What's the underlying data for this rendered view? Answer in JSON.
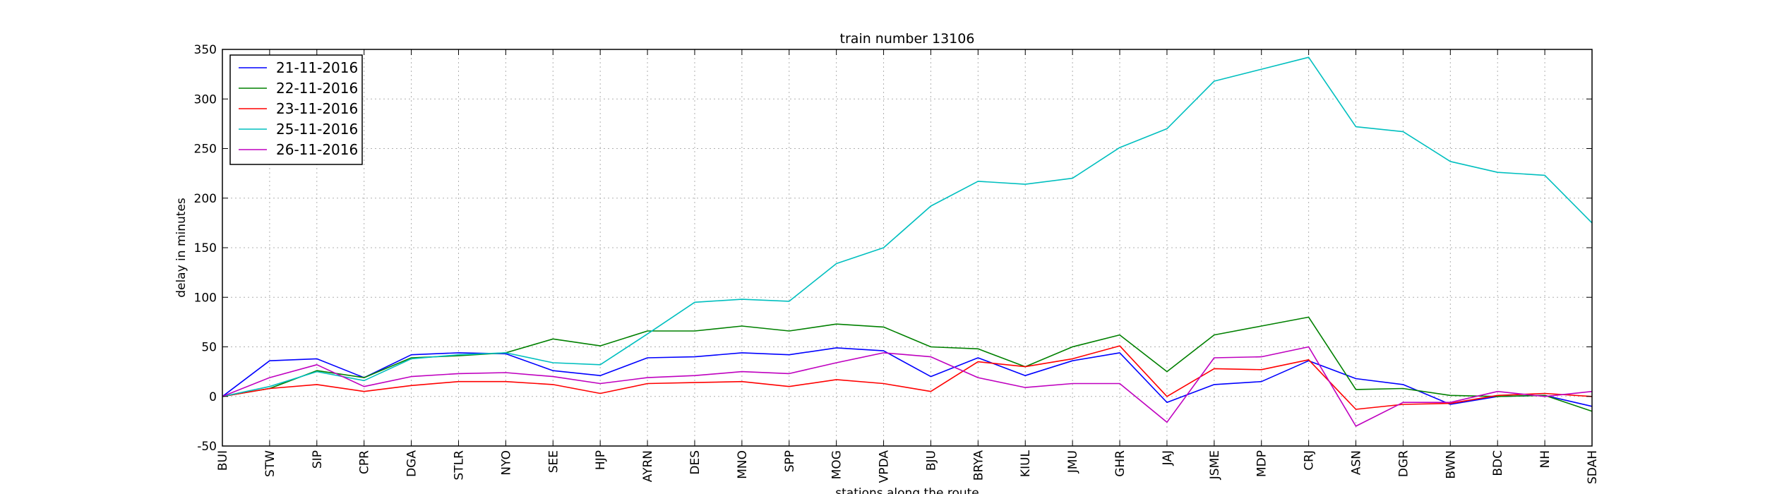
{
  "chart_data": {
    "type": "line",
    "title": "train number 13106",
    "xlabel": "stations along the route",
    "ylabel": "delay in minutes",
    "ylim": [
      -50,
      350
    ],
    "yticks": [
      -50,
      0,
      50,
      100,
      150,
      200,
      250,
      300,
      350
    ],
    "grid": true,
    "legend_position": "top-left",
    "categories": [
      "BUI",
      "STW",
      "SIP",
      "CPR",
      "DGA",
      "STLR",
      "NYO",
      "SEE",
      "HJP",
      "AYRN",
      "DES",
      "MNO",
      "SPP",
      "MOG",
      "VPDA",
      "BJU",
      "BRYA",
      "KIUL",
      "JMU",
      "GHR",
      "JAJ",
      "JSME",
      "MDP",
      "CRJ",
      "ASN",
      "DGR",
      "BWN",
      "BDC",
      "NH",
      "SDAH"
    ],
    "series": [
      {
        "name": "21-11-2016",
        "color": "#0000ff",
        "values": [
          0,
          36,
          38,
          19,
          42,
          44,
          43,
          26,
          21,
          39,
          40,
          44,
          42,
          49,
          46,
          20,
          39,
          21,
          36,
          44,
          -6,
          12,
          15,
          36,
          18,
          12,
          -8,
          0,
          1,
          -10
        ]
      },
      {
        "name": "22-11-2016",
        "color": "#008000",
        "values": [
          0,
          8,
          26,
          19,
          39,
          41,
          44,
          58,
          51,
          66,
          66,
          71,
          66,
          73,
          70,
          50,
          48,
          30,
          50,
          62,
          25,
          62,
          71,
          80,
          7,
          8,
          1,
          0,
          1,
          -15
        ]
      },
      {
        "name": "23-11-2016",
        "color": "#ff0000",
        "values": [
          0,
          8,
          12,
          5,
          11,
          15,
          15,
          12,
          3,
          13,
          14,
          15,
          10,
          17,
          13,
          5,
          35,
          30,
          38,
          51,
          0,
          28,
          27,
          37,
          -13,
          -8,
          -7,
          1,
          3,
          0
        ]
      },
      {
        "name": "25-11-2016",
        "color": "#00bfbf",
        "values": [
          0,
          10,
          25,
          16,
          38,
          42,
          44,
          34,
          32,
          63,
          95,
          98,
          96,
          134,
          150,
          192,
          217,
          214,
          220,
          251,
          270,
          318,
          330,
          342,
          272,
          267,
          237,
          226,
          223,
          175
        ]
      },
      {
        "name": "26-11-2016",
        "color": "#bf00bf",
        "values": [
          0,
          19,
          32,
          10,
          20,
          23,
          24,
          20,
          13,
          19,
          21,
          25,
          23,
          34,
          44,
          40,
          19,
          9,
          13,
          13,
          -26,
          39,
          40,
          50,
          -30,
          -6,
          -6,
          5,
          0,
          5
        ]
      }
    ]
  }
}
